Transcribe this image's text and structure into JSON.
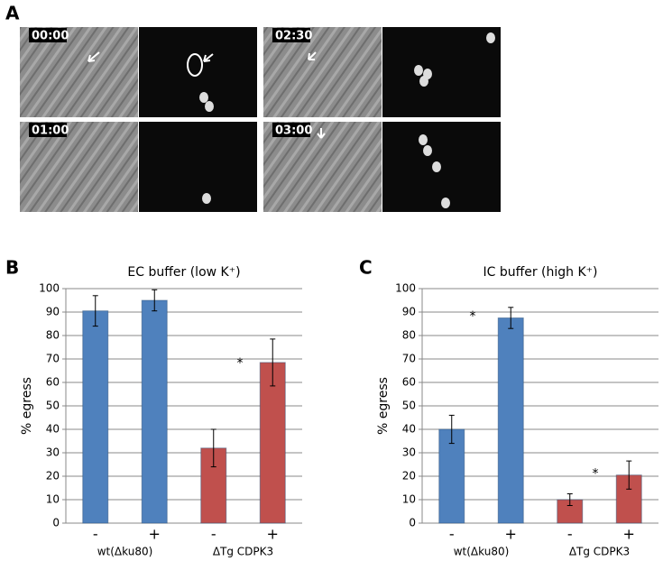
{
  "panel_a": {
    "label": "A",
    "timestamps": [
      "00:00",
      "01:00",
      "02:30",
      "03:00"
    ]
  },
  "chart_data": [
    {
      "type": "bar",
      "panel_label": "B",
      "title": "EC buffer (low K⁺)",
      "y_label": "% egress",
      "categories": [
        "-",
        "+",
        "-",
        "+"
      ],
      "groups": [
        "wt(Δku80)",
        "ΔTg CDPK3"
      ],
      "values": [
        90.5,
        95,
        32,
        68.5
      ],
      "errors": [
        6.5,
        4.5,
        8,
        10
      ],
      "colors": [
        "#4f81bd",
        "#4f81bd",
        "#c0504d",
        "#c0504d"
      ],
      "annotations": [
        "*"
      ],
      "ylim": [
        0,
        100
      ],
      "yticks": [
        0,
        10,
        20,
        30,
        40,
        50,
        60,
        70,
        80,
        90,
        100
      ],
      "grid": true
    },
    {
      "type": "bar",
      "panel_label": "C",
      "title": "IC buffer (high K⁺)",
      "y_label": "% egress",
      "categories": [
        "-",
        "+",
        "-",
        "+"
      ],
      "groups": [
        "wt(Δku80)",
        "ΔTg CDPK3"
      ],
      "values": [
        40,
        87.5,
        10,
        20.5
      ],
      "errors": [
        6,
        4.5,
        2.5,
        6
      ],
      "colors": [
        "#4f81bd",
        "#4f81bd",
        "#c0504d",
        "#c0504d"
      ],
      "annotations": [
        "*",
        "*"
      ],
      "ylim": [
        0,
        100
      ],
      "yticks": [
        0,
        10,
        20,
        30,
        40,
        50,
        60,
        70,
        80,
        90,
        100
      ],
      "grid": true
    }
  ]
}
